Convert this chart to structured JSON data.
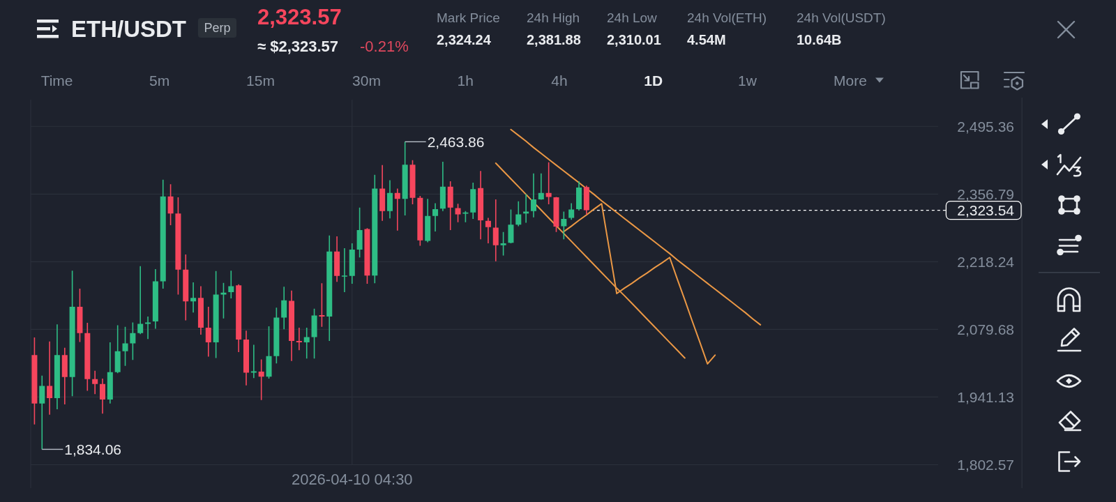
{
  "chart_data": {
    "type": "candlestick",
    "title": "ETH/USDT",
    "categories": [
      null,
      null,
      null,
      null,
      null,
      null,
      null,
      null,
      null,
      null,
      null,
      null,
      null,
      null,
      null,
      null,
      null,
      null,
      null,
      null,
      null,
      null,
      null,
      null,
      null,
      null,
      null,
      null,
      null,
      null,
      null,
      null,
      null,
      null,
      null,
      null,
      null,
      null,
      null,
      null,
      null,
      null,
      "2026-04-10 04:30",
      null,
      null,
      null,
      null,
      null,
      null,
      null,
      null,
      null,
      null,
      null,
      null,
      null,
      null,
      null,
      null,
      null,
      null,
      null,
      null,
      null,
      null,
      null,
      null,
      null,
      null,
      null,
      null,
      null,
      null,
      null,
      null,
      null,
      null,
      null,
      null,
      null,
      null,
      null,
      null,
      null,
      null,
      null,
      null,
      null,
      null,
      null,
      null,
      null,
      null,
      null,
      null,
      null,
      null,
      null,
      null,
      null,
      null,
      null,
      null,
      null,
      null,
      null,
      null,
      null,
      null,
      null,
      null,
      null,
      null,
      null,
      null,
      null,
      null,
      null,
      null,
      null
    ],
    "ohlc": [
      [
        2027,
        2063,
        1885,
        1928
      ],
      [
        1928,
        1985,
        1834.06,
        1964
      ],
      [
        1964,
        2055,
        1905,
        1939
      ],
      [
        1939,
        2090,
        1916,
        2027
      ],
      [
        2027,
        2042,
        1926,
        1982
      ],
      [
        1982,
        2200,
        1943,
        2126
      ],
      [
        2126,
        2163,
        2054,
        2072
      ],
      [
        2072,
        2093,
        1954,
        1978
      ],
      [
        1978,
        1995,
        1947,
        1968
      ],
      [
        1968,
        1979,
        1907,
        1936
      ],
      [
        1936,
        2053,
        1928,
        1992
      ],
      [
        1992,
        2088,
        1990,
        2035
      ],
      [
        2035,
        2085,
        2005,
        2051
      ],
      [
        2051,
        2094,
        2017,
        2072
      ],
      [
        2072,
        2209,
        2070,
        2091
      ],
      [
        2091,
        2106,
        2060,
        2094
      ],
      [
        2096,
        2203,
        2081,
        2178
      ],
      [
        2178,
        2386,
        2163,
        2352
      ],
      [
        2352,
        2377,
        2293,
        2317
      ],
      [
        2317,
        2350,
        2151,
        2202
      ],
      [
        2202,
        2233,
        2098,
        2137
      ],
      [
        2137,
        2176,
        2114,
        2144
      ],
      [
        2144,
        2168,
        2069,
        2083
      ],
      [
        2083,
        2126,
        2024,
        2053
      ],
      [
        2053,
        2199,
        2021,
        2151
      ],
      [
        2151,
        2175,
        2102,
        2155
      ],
      [
        2156,
        2200,
        2143,
        2168
      ],
      [
        2170,
        2172,
        2033,
        2059
      ],
      [
        2059,
        2077,
        1965,
        1991
      ],
      [
        1991,
        2048,
        1980,
        1994
      ],
      [
        1993,
        2018,
        1935,
        1983
      ],
      [
        1983,
        2086,
        1979,
        2025
      ],
      [
        2025,
        2124,
        2010,
        2104
      ],
      [
        2104,
        2167,
        2080,
        2139
      ],
      [
        2138,
        2159,
        2015,
        2056
      ],
      [
        2056,
        2083,
        2037,
        2053
      ],
      [
        2053,
        2083,
        2020,
        2064
      ],
      [
        2064,
        2122,
        2020,
        2108
      ],
      [
        2109,
        2174,
        2085,
        2106
      ],
      [
        2106,
        2272,
        2056,
        2239
      ],
      [
        2239,
        2270,
        2177,
        2189
      ],
      [
        2189,
        2246,
        2156,
        2190
      ],
      [
        2189,
        2256,
        2173,
        2243
      ],
      [
        2243,
        2329,
        2227,
        2283
      ],
      [
        2285,
        2287,
        2173,
        2190
      ],
      [
        2190,
        2396,
        2174,
        2368
      ],
      [
        2368,
        2416,
        2302,
        2322
      ],
      [
        2322,
        2385,
        2307,
        2359
      ],
      [
        2359,
        2368,
        2282,
        2347
      ],
      [
        2347,
        2463.86,
        2313,
        2417
      ],
      [
        2417,
        2426,
        2336,
        2349
      ],
      [
        2349,
        2353,
        2251,
        2262
      ],
      [
        2261,
        2347,
        2258,
        2312
      ],
      [
        2312,
        2338,
        2280,
        2326
      ],
      [
        2327,
        2423,
        2322,
        2372
      ],
      [
        2372,
        2383,
        2283,
        2329
      ],
      [
        2328,
        2337,
        2299,
        2315
      ],
      [
        2317,
        2322,
        2299,
        2319
      ],
      [
        2319,
        2380,
        2306,
        2367
      ],
      [
        2369,
        2404,
        2264,
        2303
      ],
      [
        2302,
        2308,
        2256,
        2289
      ],
      [
        2288,
        2346,
        2219,
        2252
      ],
      [
        2252,
        2279,
        2231,
        2256
      ],
      [
        2257,
        2325,
        2256,
        2294
      ],
      [
        2294,
        2342,
        2291,
        2315
      ],
      [
        2317,
        2357,
        2298,
        2321
      ],
      [
        2322,
        2399,
        2309,
        2346
      ],
      [
        2346,
        2399,
        2345,
        2359
      ],
      [
        2359,
        2422,
        2336,
        2351
      ],
      [
        2350,
        2351,
        2279,
        2290
      ],
      [
        2291,
        2321,
        2264,
        2306
      ],
      [
        2308,
        2338,
        2304,
        2325
      ],
      [
        2326,
        2383,
        2323,
        2370
      ],
      [
        2371,
        2374,
        2315,
        2323.54
      ],
      null,
      null,
      null,
      null,
      null,
      null,
      null,
      null,
      null,
      null,
      null,
      null,
      null,
      null,
      null,
      null,
      null,
      null,
      null,
      null,
      null,
      null,
      null,
      null,
      null,
      null,
      null,
      null,
      null,
      null,
      null,
      null,
      null,
      null,
      null,
      null,
      null,
      null,
      null,
      null,
      null,
      null,
      null,
      null,
      null,
      null
    ],
    "colors": [
      "#f6465d",
      "#2ebd85",
      "#f6465d",
      "#2ebd85",
      "#f6465d",
      "#2ebd85",
      "#f6465d",
      "#f6465d",
      "#f6465d",
      "#f6465d",
      "#2ebd85",
      "#2ebd85",
      "#2ebd85",
      "#2ebd85",
      "#2ebd85",
      "#2ebd85",
      "#2ebd85",
      "#2ebd85",
      "#f6465d",
      "#f6465d",
      "#f6465d",
      "#2ebd85",
      "#f6465d",
      "#f6465d",
      "#2ebd85",
      "#2ebd85",
      "#2ebd85",
      "#f6465d",
      "#f6465d",
      "#2ebd85",
      "#f6465d",
      "#2ebd85",
      "#2ebd85",
      "#2ebd85",
      "#f6465d",
      "#f6465d",
      "#2ebd85",
      "#2ebd85",
      "#f6465d",
      "#2ebd85",
      "#f6465d",
      "#2ebd85",
      "#2ebd85",
      "#2ebd85",
      "#f6465d",
      "#2ebd85",
      "#f6465d",
      "#2ebd85",
      "#f6465d",
      "#2ebd85",
      "#f6465d",
      "#f6465d",
      "#2ebd85",
      "#2ebd85",
      "#2ebd85",
      "#f6465d",
      "#f6465d",
      "#2ebd85",
      "#2ebd85",
      "#f6465d",
      "#f6465d",
      "#f6465d",
      "#2ebd85",
      "#2ebd85",
      "#2ebd85",
      "#2ebd85",
      "#2ebd85",
      "#2ebd85",
      "#f6465d",
      "#f6465d",
      "#2ebd85",
      "#2ebd85",
      "#2ebd85",
      "#f6465d",
      null,
      null,
      null,
      null,
      null,
      null,
      null,
      null,
      null,
      null,
      null,
      null,
      null,
      null,
      null,
      null,
      null,
      null,
      null,
      null,
      null,
      null,
      null,
      null,
      null,
      null,
      null,
      null,
      null,
      null,
      null,
      null,
      null,
      null,
      null,
      null,
      null,
      null,
      null,
      null,
      null,
      null,
      null,
      null,
      null,
      null
    ],
    "series": [
      {
        "type": "line",
        "color": "#eb9845",
        "values": [
          null,
          null,
          null,
          null,
          null,
          null,
          null,
          null,
          null,
          null,
          null,
          null,
          null,
          null,
          null,
          null,
          null,
          null,
          null,
          null,
          null,
          null,
          null,
          null,
          null,
          null,
          null,
          null,
          null,
          null,
          null,
          null,
          null,
          null,
          null,
          null,
          null,
          null,
          null,
          null,
          null,
          null,
          null,
          null,
          null,
          null,
          null,
          null,
          null,
          null,
          null,
          null,
          null,
          null,
          null,
          null,
          null,
          null,
          null,
          null,
          null,
          null,
          null,
          2489,
          2477,
          2465,
          2452,
          2440,
          2428,
          2416,
          2404,
          2392,
          2380,
          2368,
          2356,
          2343,
          2331,
          2319,
          2307,
          2295,
          2283,
          2271,
          2259,
          2247,
          2235,
          2222,
          2210,
          2198,
          2186,
          2174,
          2162,
          2150,
          2138,
          2126,
          2114,
          2101,
          2089,
          null,
          null,
          null,
          null,
          null,
          null,
          null,
          null,
          null,
          null,
          null,
          null,
          null,
          null,
          null,
          null,
          null,
          null,
          null,
          null,
          null,
          null,
          null
        ]
      },
      {
        "type": "line",
        "color": "#eb9845",
        "values": [
          null,
          null,
          null,
          null,
          null,
          null,
          null,
          null,
          null,
          null,
          null,
          null,
          null,
          null,
          null,
          null,
          null,
          null,
          null,
          null,
          null,
          null,
          null,
          null,
          null,
          null,
          null,
          null,
          null,
          null,
          null,
          null,
          null,
          null,
          null,
          null,
          null,
          null,
          null,
          null,
          null,
          null,
          null,
          null,
          null,
          null,
          null,
          null,
          null,
          null,
          null,
          null,
          null,
          null,
          null,
          null,
          null,
          null,
          null,
          null,
          null,
          2420,
          2404,
          2388,
          2372,
          2356,
          2340,
          2324,
          2308,
          2292,
          2276,
          2260,
          2244,
          2228,
          2212,
          2196,
          2180,
          2164,
          2149,
          2133,
          2117,
          2101,
          2085,
          2069,
          2053,
          2037,
          2021,
          null,
          null,
          null,
          null,
          null,
          null,
          null,
          null,
          null,
          null,
          null,
          null,
          null,
          null,
          null,
          null,
          null,
          null,
          null,
          null,
          null,
          null,
          null,
          null,
          null,
          null,
          null,
          null,
          null,
          null,
          null,
          null,
          null
        ]
      },
      {
        "type": "line",
        "color": "#eb9845",
        "values": [
          null,
          null,
          null,
          null,
          null,
          null,
          null,
          null,
          null,
          null,
          null,
          null,
          null,
          null,
          null,
          null,
          null,
          null,
          null,
          null,
          null,
          null,
          null,
          null,
          null,
          null,
          null,
          null,
          null,
          null,
          null,
          null,
          null,
          null,
          null,
          null,
          null,
          null,
          null,
          null,
          null,
          null,
          null,
          null,
          null,
          null,
          null,
          null,
          null,
          null,
          null,
          null,
          null,
          null,
          null,
          null,
          null,
          null,
          null,
          null,
          null,
          null,
          null,
          null,
          null,
          null,
          null,
          null,
          null,
          null,
          2280,
          2291,
          2303,
          2314,
          2326,
          2337,
          2245,
          2153,
          2164,
          2174,
          2185,
          2195,
          2206,
          2216,
          2227,
          2183,
          2140,
          2096,
          2053,
          2009,
          2027,
          null,
          null,
          null,
          null,
          null,
          null,
          null,
          null,
          null,
          null,
          null,
          null,
          null,
          null,
          null,
          null,
          null,
          null,
          null,
          null,
          null,
          null,
          null,
          null,
          null,
          null,
          null,
          null,
          null
        ]
      }
    ],
    "ylim": [
      1802.57,
      2550
    ],
    "yticks": [
      {
        "value": 1802.57,
        "label": "1,802.57"
      },
      {
        "value": 1941.13,
        "label": "1,941.13"
      },
      {
        "value": 2079.68,
        "label": "2,079.68"
      },
      {
        "value": 2218.24,
        "label": "2,218.24"
      },
      {
        "value": 2356.79,
        "label": "2,356.79"
      },
      {
        "value": 2495.36,
        "label": "2,495.36"
      }
    ],
    "grid": true,
    "ref_lines": [
      {
        "axis": "y",
        "value": 2323.54,
        "label": "2,323.54",
        "color": "#ffffff",
        "line_style": "dashed"
      }
    ],
    "annotations": [
      "Perp",
      "2,323.57",
      "≈ $2,323.57",
      "-0.21%",
      "Mark Price",
      "2,324.24",
      "24h High",
      "2,381.88",
      "24h Low",
      "2,310.01",
      "24h Vol(ETH)",
      "4.54M",
      "24h Vol(USDT)",
      "10.64B",
      "Time",
      "5m",
      "15m",
      "30m",
      "1h",
      "4h",
      "1D",
      "1w",
      "More",
      "2,463.86",
      "1,834.06"
    ]
  }
}
